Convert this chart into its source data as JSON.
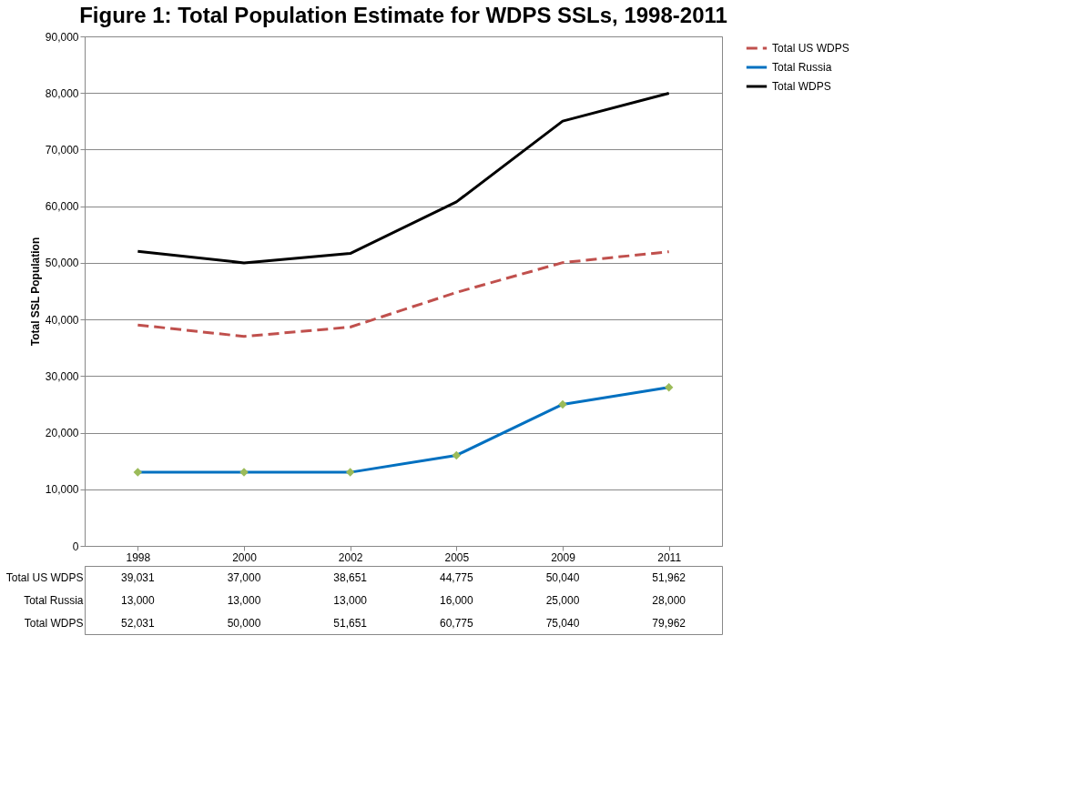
{
  "chart_data": {
    "type": "line",
    "title": "Figure 1: Total Population Estimate for WDPS SSLs, 1998-2011",
    "ylabel": "Total SSL Population",
    "categories": [
      "1998",
      "2000",
      "2002",
      "2005",
      "2009",
      "2011"
    ],
    "series": [
      {
        "name": "Total US WDPS",
        "color": "#c0504d",
        "line_style": "dashed",
        "marker": "none",
        "values": [
          39031,
          37000,
          38651,
          44775,
          50040,
          51962
        ],
        "value_labels": [
          "39,031",
          "37,000",
          "38,651",
          "44,775",
          "50,040",
          "51,962"
        ]
      },
      {
        "name": "Total Russia",
        "color": "#0070c0",
        "line_style": "solid",
        "marker": "diamond",
        "values": [
          13000,
          13000,
          13000,
          16000,
          25000,
          28000
        ],
        "value_labels": [
          "13,000",
          "13,000",
          "13,000",
          "16,000",
          "25,000",
          "28,000"
        ]
      },
      {
        "name": "Total WDPS",
        "color": "#000000",
        "line_style": "solid",
        "marker": "none",
        "values": [
          52031,
          50000,
          51651,
          60775,
          75040,
          79962
        ],
        "value_labels": [
          "52,031",
          "50,000",
          "51,651",
          "60,775",
          "75,040",
          "79,962"
        ]
      }
    ],
    "ylim": [
      0,
      90000
    ],
    "yticks": [
      {
        "value": 0,
        "label": "0"
      },
      {
        "value": 10000,
        "label": "10,000"
      },
      {
        "value": 20000,
        "label": "20,000"
      },
      {
        "value": 30000,
        "label": "30,000"
      },
      {
        "value": 40000,
        "label": "40,000"
      },
      {
        "value": 50000,
        "label": "50,000"
      },
      {
        "value": 60000,
        "label": "60,000"
      },
      {
        "value": 70000,
        "label": "70,000"
      },
      {
        "value": 80000,
        "label": "80,000"
      },
      {
        "value": 90000,
        "label": "90,000"
      }
    ],
    "grid": "y",
    "legend": "right"
  }
}
